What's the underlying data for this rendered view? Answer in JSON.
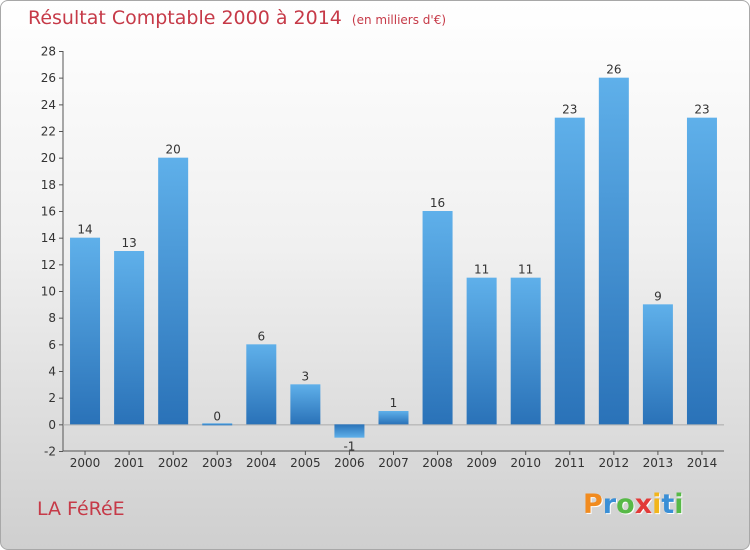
{
  "header": {
    "title": "Résultat Comptable 2000 à 2014",
    "unit": "(en milliers d'€)"
  },
  "footer": {
    "commune": "LA FéRéE",
    "logo_letters": [
      "P",
      "r",
      "o",
      "x",
      "i",
      "t",
      "i"
    ],
    "logo_colors": [
      "#f18b1f",
      "#3a8fd6",
      "#57b947",
      "#e23a38",
      "#f2b51b",
      "#3a8fd6",
      "#57b947"
    ]
  },
  "chart_data": {
    "type": "bar",
    "categories": [
      "2000",
      "2001",
      "2002",
      "2003",
      "2004",
      "2005",
      "2006",
      "2007",
      "2008",
      "2009",
      "2010",
      "2011",
      "2012",
      "2013",
      "2014"
    ],
    "values": [
      14,
      13,
      20,
      0,
      6,
      3,
      -1,
      1,
      16,
      11,
      11,
      23,
      26,
      9,
      23
    ],
    "value_labels": [
      "14",
      "13",
      "20",
      "0",
      "6",
      "3",
      "-1",
      "1",
      "16",
      "11",
      "11",
      "23",
      "26",
      "9",
      "23"
    ],
    "ylim": [
      -2,
      28
    ],
    "yticks": [
      -2,
      0,
      2,
      4,
      6,
      8,
      10,
      12,
      14,
      16,
      18,
      20,
      22,
      24,
      26,
      28
    ],
    "grid": false,
    "bar_color": "#3d8fd6",
    "bar_color_light": "#5fb0ea",
    "bar_color_dark": "#2a72b8"
  }
}
